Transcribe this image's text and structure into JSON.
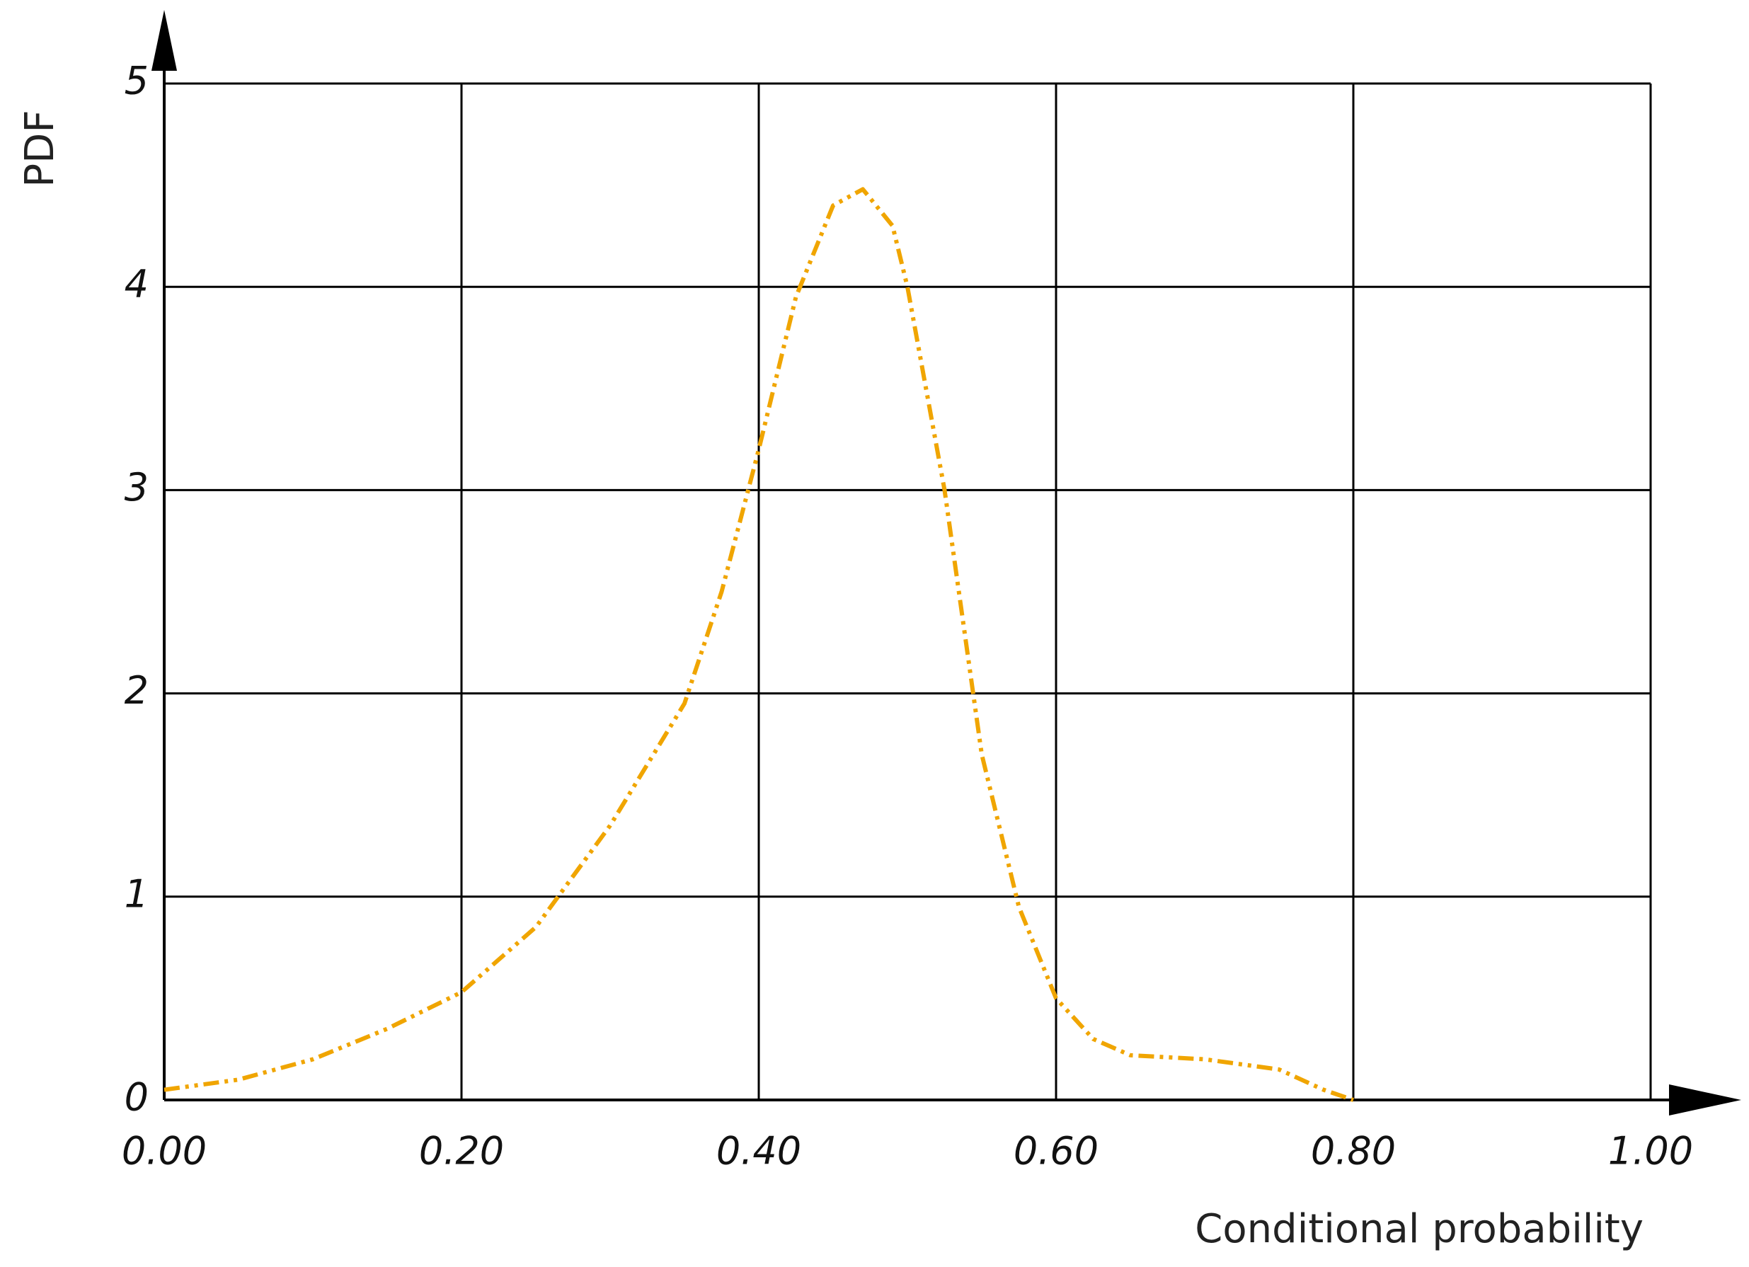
{
  "chart_data": {
    "type": "line",
    "x_label": "Conditional probability",
    "y_label": "PDF",
    "series": [
      {
        "color": "#f0a500",
        "x": [
          0,
          0.05,
          0.1,
          0.15,
          0.2,
          0.25,
          0.3,
          0.35,
          0.375,
          0.4,
          0.425,
          0.45,
          0.47,
          0.49,
          0.5,
          0.525,
          0.55,
          0.575,
          0.6,
          0.625,
          0.65,
          0.7,
          0.75,
          0.78,
          0.8
        ],
        "values": [
          0.05,
          0.1,
          0.2,
          0.35,
          0.53,
          0.85,
          1.35,
          1.95,
          2.5,
          3.2,
          3.95,
          4.4,
          4.48,
          4.3,
          4.0,
          3.0,
          1.7,
          0.95,
          0.5,
          0.3,
          0.22,
          0.2,
          0.15,
          0.05,
          0
        ]
      }
    ],
    "xlim": [
      0,
      1
    ],
    "xticks": [
      {
        "value": 0,
        "label": "0.00"
      },
      {
        "value": 0.2,
        "label": "0.20"
      },
      {
        "value": 0.4,
        "label": "0.40"
      },
      {
        "value": 0.6,
        "label": "0.60"
      },
      {
        "value": 0.8,
        "label": "0.80"
      },
      {
        "value": 1,
        "label": "1.00"
      }
    ],
    "ylim": [
      0,
      5
    ],
    "yticks": [
      0,
      1,
      2,
      3,
      4,
      5
    ],
    "grid": true
  }
}
